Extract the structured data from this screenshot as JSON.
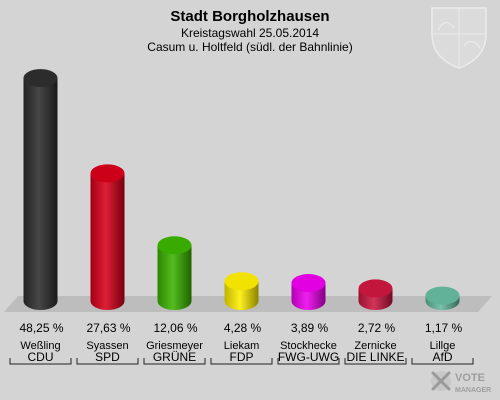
{
  "chart_data": {
    "type": "bar",
    "title": "Stadt Borgholzhausen",
    "subtitle": "Kreistagswahl 25.05.2014",
    "subtitle2": "Casum u. Holtfeld (südl. der Bahnlinie)",
    "categories": [
      "CDU",
      "SPD",
      "GRÜNE",
      "FDP",
      "FWG-UWG",
      "DIE LINKE",
      "AfD"
    ],
    "candidates": [
      "Weßling",
      "Syassen",
      "Griesmeyer",
      "Liekam",
      "Stockhecke",
      "Zernicke",
      "Lillge"
    ],
    "values": [
      48.25,
      27.63,
      12.06,
      4.28,
      3.89,
      2.72,
      1.17
    ],
    "value_labels": [
      "48,25 %",
      "27,63 %",
      "12,06 %",
      "4,28 %",
      "3,89 %",
      "2,72 %",
      "1,17 %"
    ],
    "colors": [
      "#2e2e2e",
      "#d8001a",
      "#3cb400",
      "#ffee00",
      "#ee00ee",
      "#cc1740",
      "#66bba0"
    ],
    "ylim": [
      0,
      50
    ]
  },
  "brand": {
    "line1": "VOTE",
    "line2": "MANAGER"
  }
}
